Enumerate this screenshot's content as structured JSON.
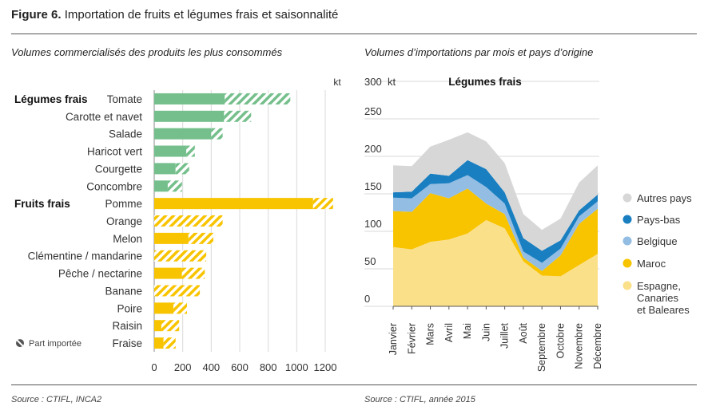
{
  "figure": {
    "number": "Figure 6.",
    "title": "Importation de fruits et légumes frais et saisonnalité"
  },
  "left_subtitle": "Volumes commercialisés des produits les plus consommés",
  "right_subtitle": "Volumes d’importations par mois et pays d’origine",
  "left_source": "Source : CTIFL, INCA2",
  "right_source": "Source : CTIFL, année 2015",
  "colors": {
    "legumes": "#74bf8b",
    "fruits": "#f8c400",
    "espagne": "#fbe08a",
    "maroc": "#f8c400",
    "belgique": "#93bde3",
    "paysbas": "#1a7fc1",
    "autres": "#d7d7d7",
    "grid": "#d9d9d9"
  },
  "chart_data": [
    {
      "type": "bar",
      "orientation": "horizontal",
      "unit": "kt",
      "xlim": [
        0,
        1200
      ],
      "xticks": [
        0,
        200,
        400,
        600,
        800,
        1000,
        1200
      ],
      "groups": [
        {
          "label": "Légumes frais",
          "color_key": "legumes",
          "items": [
            {
              "name": "Tomate",
              "total": 955,
              "imported": 460
            },
            {
              "name": "Carotte et navet",
              "total": 680,
              "imported": 190
            },
            {
              "name": "Salade",
              "total": 480,
              "imported": 80
            },
            {
              "name": "Haricot vert",
              "total": 285,
              "imported": 60
            },
            {
              "name": "Courgette",
              "total": 245,
              "imported": 95
            },
            {
              "name": "Concombre",
              "total": 195,
              "imported": 100
            }
          ]
        },
        {
          "label": "Fruits frais",
          "color_key": "fruits",
          "items": [
            {
              "name": "Pomme",
              "total": 1255,
              "imported": 140
            },
            {
              "name": "Orange",
              "total": 480,
              "imported": 480
            },
            {
              "name": "Melon",
              "total": 415,
              "imported": 175
            },
            {
              "name": "Clémentine / mandarine",
              "total": 365,
              "imported": 365
            },
            {
              "name": "Pêche / nectarine",
              "total": 355,
              "imported": 160
            },
            {
              "name": "Banane",
              "total": 320,
              "imported": 320
            },
            {
              "name": "Poire",
              "total": 230,
              "imported": 95
            },
            {
              "name": "Raisin",
              "total": 175,
              "imported": 125
            },
            {
              "name": "Fraise",
              "total": 150,
              "imported": 85
            }
          ]
        }
      ],
      "legend": "Part importée"
    },
    {
      "type": "area",
      "stacked": true,
      "title": "Légumes frais",
      "ylabel": "kt",
      "ylim": [
        0,
        300
      ],
      "yticks": [
        0,
        50,
        100,
        150,
        200,
        250,
        300
      ],
      "categories": [
        "Janvier",
        "Février",
        "Mars",
        "Avril",
        "Mai",
        "Juin",
        "Juillet",
        "Août",
        "Septembre",
        "Octobre",
        "Novembre",
        "Décembre"
      ],
      "series": [
        {
          "name": "Espagne, Canaries et Baleares",
          "color_key": "espagne",
          "values": [
            79,
            76,
            86,
            89,
            97,
            115,
            104,
            60,
            41,
            40,
            55,
            70
          ]
        },
        {
          "name": "Maroc",
          "color_key": "maroc",
          "values": [
            48,
            50,
            65,
            55,
            60,
            22,
            19,
            5,
            6,
            28,
            55,
            60
          ]
        },
        {
          "name": "Belgique",
          "color_key": "belgique",
          "values": [
            18,
            18,
            12,
            20,
            18,
            22,
            14,
            8,
            11,
            9,
            10,
            10
          ]
        },
        {
          "name": "Pays-bas",
          "color_key": "paysbas",
          "values": [
            7,
            9,
            14,
            10,
            20,
            24,
            15,
            18,
            16,
            11,
            8,
            9
          ]
        },
        {
          "name": "Autres pays",
          "color_key": "autres",
          "values": [
            36,
            34,
            36,
            48,
            37,
            37,
            39,
            32,
            28,
            29,
            37,
            39
          ]
        }
      ],
      "legend_order": [
        "Autres pays",
        "Pays-bas",
        "Belgique",
        "Maroc",
        "Espagne, Canaries et Baleares"
      ]
    }
  ]
}
